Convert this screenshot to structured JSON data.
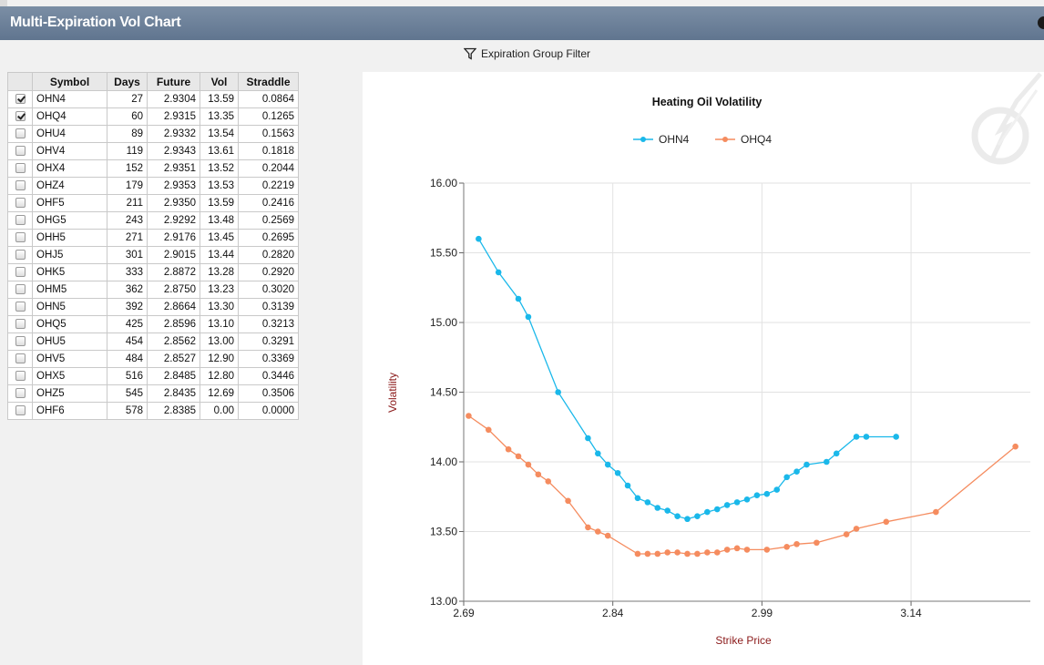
{
  "window": {
    "title": "Multi-Expiration Vol Chart"
  },
  "filter": {
    "label": "Expiration Group Filter"
  },
  "table": {
    "headers": [
      "Symbol",
      "Days",
      "Future",
      "Vol",
      "Straddle"
    ],
    "rows": [
      {
        "checked": true,
        "symbol": "OHN4",
        "days": "27",
        "future": "2.9304",
        "vol": "13.59",
        "straddle": "0.0864"
      },
      {
        "checked": true,
        "symbol": "OHQ4",
        "days": "60",
        "future": "2.9315",
        "vol": "13.35",
        "straddle": "0.1265"
      },
      {
        "checked": false,
        "symbol": "OHU4",
        "days": "89",
        "future": "2.9332",
        "vol": "13.54",
        "straddle": "0.1563"
      },
      {
        "checked": false,
        "symbol": "OHV4",
        "days": "119",
        "future": "2.9343",
        "vol": "13.61",
        "straddle": "0.1818"
      },
      {
        "checked": false,
        "symbol": "OHX4",
        "days": "152",
        "future": "2.9351",
        "vol": "13.52",
        "straddle": "0.2044"
      },
      {
        "checked": false,
        "symbol": "OHZ4",
        "days": "179",
        "future": "2.9353",
        "vol": "13.53",
        "straddle": "0.2219"
      },
      {
        "checked": false,
        "symbol": "OHF5",
        "days": "211",
        "future": "2.9350",
        "vol": "13.59",
        "straddle": "0.2416"
      },
      {
        "checked": false,
        "symbol": "OHG5",
        "days": "243",
        "future": "2.9292",
        "vol": "13.48",
        "straddle": "0.2569"
      },
      {
        "checked": false,
        "symbol": "OHH5",
        "days": "271",
        "future": "2.9176",
        "vol": "13.45",
        "straddle": "0.2695"
      },
      {
        "checked": false,
        "symbol": "OHJ5",
        "days": "301",
        "future": "2.9015",
        "vol": "13.44",
        "straddle": "0.2820"
      },
      {
        "checked": false,
        "symbol": "OHK5",
        "days": "333",
        "future": "2.8872",
        "vol": "13.28",
        "straddle": "0.2920"
      },
      {
        "checked": false,
        "symbol": "OHM5",
        "days": "362",
        "future": "2.8750",
        "vol": "13.23",
        "straddle": "0.3020"
      },
      {
        "checked": false,
        "symbol": "OHN5",
        "days": "392",
        "future": "2.8664",
        "vol": "13.30",
        "straddle": "0.3139"
      },
      {
        "checked": false,
        "symbol": "OHQ5",
        "days": "425",
        "future": "2.8596",
        "vol": "13.10",
        "straddle": "0.3213"
      },
      {
        "checked": false,
        "symbol": "OHU5",
        "days": "454",
        "future": "2.8562",
        "vol": "13.00",
        "straddle": "0.3291"
      },
      {
        "checked": false,
        "symbol": "OHV5",
        "days": "484",
        "future": "2.8527",
        "vol": "12.90",
        "straddle": "0.3369"
      },
      {
        "checked": false,
        "symbol": "OHX5",
        "days": "516",
        "future": "2.8485",
        "vol": "12.80",
        "straddle": "0.3446"
      },
      {
        "checked": false,
        "symbol": "OHZ5",
        "days": "545",
        "future": "2.8435",
        "vol": "12.69",
        "straddle": "0.3506"
      },
      {
        "checked": false,
        "symbol": "OHF6",
        "days": "578",
        "future": "2.8385",
        "vol": "0.00",
        "straddle": "0.0000"
      }
    ]
  },
  "chart_data": {
    "type": "line",
    "title": "Heating Oil Volatility",
    "xlabel": "Strike Price",
    "ylabel": "Volatility",
    "xlim": [
      2.69,
      3.26
    ],
    "ylim": [
      13.0,
      16.0
    ],
    "xticks": [
      "2.69",
      "2.84",
      "2.99",
      "3.14"
    ],
    "yticks": [
      "13.00",
      "13.50",
      "14.00",
      "14.50",
      "15.00",
      "15.50",
      "16.00"
    ],
    "grid": true,
    "legend_position": "top-center",
    "series": [
      {
        "name": "OHN4",
        "color": "#1ab8ea",
        "x": [
          2.705,
          2.725,
          2.745,
          2.755,
          2.785,
          2.815,
          2.825,
          2.835,
          2.845,
          2.855,
          2.865,
          2.875,
          2.885,
          2.895,
          2.905,
          2.915,
          2.925,
          2.935,
          2.945,
          2.955,
          2.965,
          2.975,
          2.985,
          2.995,
          3.005,
          3.015,
          3.025,
          3.035,
          3.055,
          3.065,
          3.085,
          3.095,
          3.125
        ],
        "y": [
          15.6,
          15.36,
          15.17,
          15.04,
          14.5,
          14.17,
          14.06,
          13.98,
          13.92,
          13.83,
          13.74,
          13.71,
          13.67,
          13.65,
          13.61,
          13.59,
          13.61,
          13.64,
          13.66,
          13.69,
          13.71,
          13.73,
          13.76,
          13.77,
          13.8,
          13.89,
          13.93,
          13.98,
          14.0,
          14.06,
          14.18,
          14.18,
          14.18
        ]
      },
      {
        "name": "OHQ4",
        "color": "#f58c5f",
        "x": [
          2.695,
          2.715,
          2.735,
          2.745,
          2.755,
          2.765,
          2.775,
          2.795,
          2.815,
          2.825,
          2.835,
          2.865,
          2.875,
          2.885,
          2.895,
          2.905,
          2.915,
          2.925,
          2.935,
          2.945,
          2.955,
          2.965,
          2.975,
          2.995,
          3.015,
          3.025,
          3.045,
          3.075,
          3.085,
          3.115,
          3.165,
          3.245
        ],
        "y": [
          14.33,
          14.23,
          14.09,
          14.04,
          13.98,
          13.91,
          13.86,
          13.72,
          13.53,
          13.5,
          13.47,
          13.34,
          13.34,
          13.34,
          13.35,
          13.35,
          13.34,
          13.34,
          13.35,
          13.35,
          13.37,
          13.38,
          13.37,
          13.37,
          13.39,
          13.41,
          13.42,
          13.48,
          13.52,
          13.57,
          13.64,
          14.11
        ]
      }
    ]
  }
}
